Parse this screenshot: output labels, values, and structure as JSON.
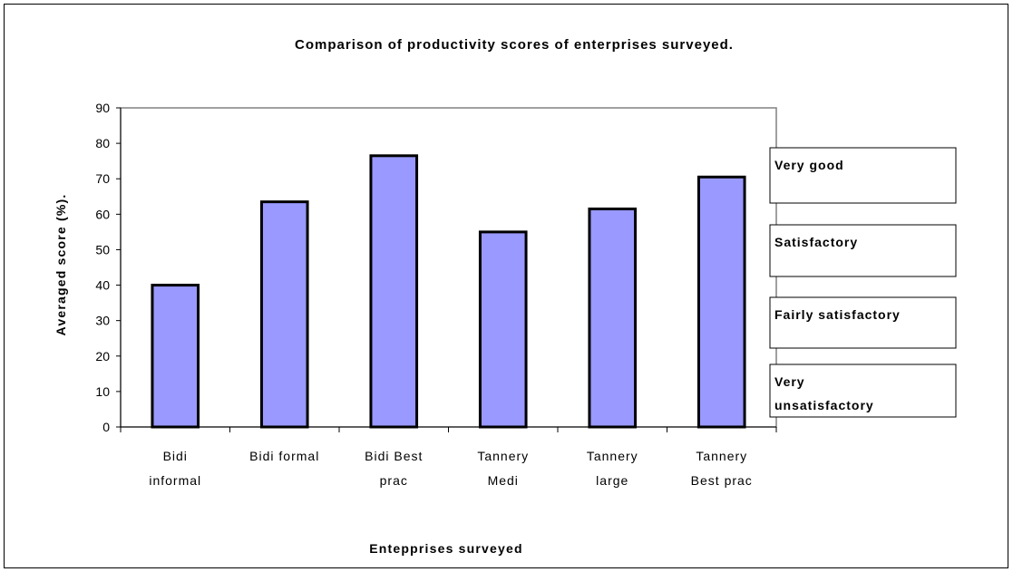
{
  "chart_data": {
    "type": "bar",
    "title": "Comparison of productivity scores of enterprises surveyed.",
    "xlabel": "Entepprises surveyed",
    "ylabel": "Averaged score (%).",
    "ylim": [
      0,
      90
    ],
    "yticks": [
      "0",
      "10",
      "20",
      "30",
      "40",
      "50",
      "60",
      "70",
      "80",
      "90"
    ],
    "categories": [
      [
        "Bidi",
        "informal"
      ],
      [
        "Bidi formal"
      ],
      [
        "Bidi Best",
        "prac"
      ],
      [
        "Tannery",
        "Medi"
      ],
      [
        "Tannery",
        "large"
      ],
      [
        "Tannery",
        "Best prac"
      ]
    ],
    "values": [
      40,
      63.5,
      76.5,
      55,
      61.5,
      70.5
    ],
    "bar_color": "#9999ff",
    "plot_border_color": "#808080",
    "grid": false,
    "legend_placement": "right",
    "rating_boxes": [
      [
        "Very good"
      ],
      [
        "Satisfactory"
      ],
      [
        "Fairly satisfactory"
      ],
      [
        "Very",
        "unsatisfactory"
      ]
    ]
  }
}
